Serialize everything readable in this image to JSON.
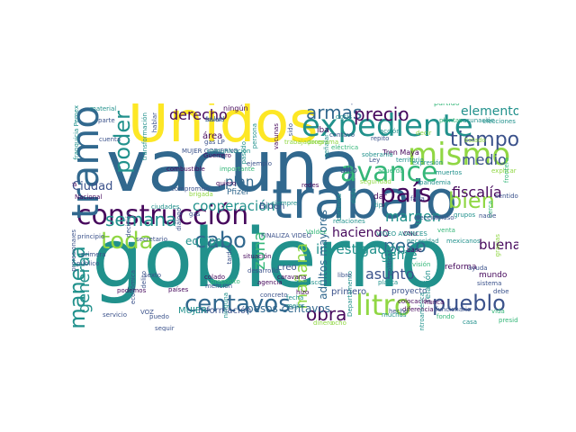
{
  "palette": {
    "dark_purple": "#46085c",
    "indigo": "#3b528b",
    "steel_blue": "#31688e",
    "teal": "#21918c",
    "sea_green": "#35b779",
    "lime": "#90d743",
    "yellow": "#fde725"
  },
  "words": [
    {
      "text": "gobierno",
      "color": "teal"
    },
    {
      "text": "vacuna",
      "color": "steel_blue"
    },
    {
      "text": "Unidos",
      "color": "yellow"
    },
    {
      "text": "construcción",
      "color": "dark_purple"
    },
    {
      "text": "trabajo",
      "color": "steel_blue"
    },
    {
      "text": "expediente",
      "color": "teal"
    },
    {
      "text": "tramo",
      "color": "steel_blue"
    },
    {
      "text": "país",
      "color": "dark_purple"
    },
    {
      "text": "mismo",
      "color": "lime"
    },
    {
      "text": "avance",
      "color": "sea_green"
    },
    {
      "text": "litro",
      "color": "lime"
    },
    {
      "text": "centavos",
      "color": "steel_blue"
    },
    {
      "text": "pueblo",
      "color": "indigo"
    },
    {
      "text": "tiempo",
      "color": "indigo"
    },
    {
      "text": "toda",
      "color": "lime"
    },
    {
      "text": "cabo",
      "color": "steel_blue"
    },
    {
      "text": "bien",
      "color": "lime"
    },
    {
      "text": "manera",
      "color": "teal"
    },
    {
      "text": "poder",
      "color": "teal"
    },
    {
      "text": "armas",
      "color": "steel_blue"
    },
    {
      "text": "precio",
      "color": "dark_purple"
    },
    {
      "text": "obra",
      "color": "dark_purple"
    },
    {
      "text": "peso",
      "color": "steel_blue"
    },
    {
      "text": "margen",
      "color": "teal"
    },
    {
      "text": "semana",
      "color": "teal"
    },
    {
      "text": "derecho",
      "color": "dark_purple"
    },
    {
      "text": "general",
      "color": "teal"
    },
    {
      "text": "elementos",
      "color": "teal"
    },
    {
      "text": "medio",
      "color": "indigo"
    },
    {
      "text": "fiscalía",
      "color": "dark_purple"
    },
    {
      "text": "cooperación",
      "color": "teal"
    },
    {
      "text": "plan",
      "color": "steel_blue"
    },
    {
      "text": "zona",
      "color": "sea_green"
    },
    {
      "text": "investigación",
      "color": "teal"
    },
    {
      "text": "asunto",
      "color": "indigo"
    },
    {
      "text": "haciendo",
      "color": "dark_purple"
    },
    {
      "text": "Ciudad",
      "color": "indigo"
    },
    {
      "text": "equipo",
      "color": "teal"
    },
    {
      "text": "buena",
      "color": "dark_purple"
    },
    {
      "text": "gente",
      "color": "teal"
    },
    {
      "text": "mañana",
      "color": "lime"
    },
    {
      "text": "adultos mayores",
      "color": "steel_blue"
    },
    {
      "text": "Biden",
      "color": "indigo"
    },
    {
      "text": "creo",
      "color": "indigo"
    },
    {
      "text": "pesos centavos",
      "color": "steel_blue"
    },
    {
      "text": "información",
      "color": "indigo"
    },
    {
      "text": "MUJER",
      "color": "teal"
    },
    {
      "text": "primero",
      "color": "indigo"
    },
    {
      "text": "proyecto",
      "color": "indigo"
    },
    {
      "text": "mundo",
      "color": "dark_purple"
    },
    {
      "text": "relación",
      "color": "teal"
    },
    {
      "text": "reforma",
      "color": "dark_purple"
    },
    {
      "text": "Pfizer",
      "color": "steel_blue"
    },
    {
      "text": "área",
      "color": "dark_purple"
    },
    {
      "text": "ningún",
      "color": "dark_purple"
    },
    {
      "text": "dosis",
      "color": "teal"
    },
    {
      "text": "paso",
      "color": "indigo"
    },
    {
      "text": "alto",
      "color": "indigo"
    },
    {
      "text": "dar",
      "color": "dark_purple"
    },
    {
      "text": "Tren Maya",
      "color": "dark_purple"
    },
    {
      "text": "vacunación",
      "color": "teal"
    },
    {
      "text": "partido",
      "color": "sea_green"
    },
    {
      "text": "salud",
      "color": "steel_blue"
    },
    {
      "text": "iba",
      "color": "dark_purple"
    },
    {
      "text": "Guerrero",
      "color": "dark_purple"
    },
    {
      "text": "ejemplo",
      "color": "indigo"
    },
    {
      "text": "combustible",
      "color": "dark_purple"
    },
    {
      "text": "importante",
      "color": "sea_green"
    },
    {
      "text": "siempre",
      "color": "teal"
    },
    {
      "text": "FINALIZA VIDEO",
      "color": "indigo"
    },
    {
      "text": "desarrollo",
      "color": "indigo"
    },
    {
      "text": "situación",
      "color": "dark_purple"
    },
    {
      "text": "agencia",
      "color": "dark_purple"
    },
    {
      "text": "concreto",
      "color": "indigo"
    },
    {
      "text": "hizo",
      "color": "dark_purple"
    },
    {
      "text": "colado",
      "color": "dark_purple"
    },
    {
      "text": "diferencia",
      "color": "dark_purple"
    },
    {
      "text": "colocación",
      "color": "dark_purple"
    },
    {
      "text": "nunca",
      "color": "dark_purple"
    },
    {
      "text": "funcionario",
      "color": "indigo"
    },
    {
      "text": "servicio",
      "color": "indigo"
    },
    {
      "text": "puedo",
      "color": "indigo"
    },
    {
      "text": "seguir",
      "color": "indigo"
    },
    {
      "text": "VOZ",
      "color": "indigo"
    },
    {
      "text": "ocho",
      "color": "lime"
    },
    {
      "text": "dinero",
      "color": "lime"
    },
    {
      "text": "podemos",
      "color": "dark_purple"
    },
    {
      "text": "países",
      "color": "dark_purple"
    },
    {
      "text": "Departamento",
      "color": "teal"
    },
    {
      "text": "sistema",
      "color": "indigo"
    },
    {
      "text": "ONU",
      "color": "dark_purple"
    },
    {
      "text": "VIDEO AVANCES",
      "color": "teal"
    },
    {
      "text": "elección",
      "color": "indigo"
    },
    {
      "text": "incluso",
      "color": "indigo"
    },
    {
      "text": "material",
      "color": "teal"
    },
    {
      "text": "parte",
      "color": "indigo"
    },
    {
      "text": "cuenta",
      "color": "indigo"
    },
    {
      "text": "cara",
      "color": "dark_purple"
    },
    {
      "text": "franquicia Pemex",
      "color": "teal"
    },
    {
      "text": "principio",
      "color": "indigo"
    },
    {
      "text": "secretario",
      "color": "indigo"
    },
    {
      "text": "caravana",
      "color": "dark_purple"
    },
    {
      "text": "fecha",
      "color": "teal"
    },
    {
      "text": "mejor",
      "color": "teal"
    },
    {
      "text": "Centroamérica",
      "color": "teal"
    },
    {
      "text": "expresión",
      "color": "teal"
    },
    {
      "text": "eléctrica",
      "color": "sea_green"
    },
    {
      "text": "centavo",
      "color": "indigo"
    },
    {
      "text": "Nacional",
      "color": "dark_purple"
    },
    {
      "text": "MUJER GOBIERNO",
      "color": "indigo"
    },
    {
      "text": "gas LP",
      "color": "indigo"
    },
    {
      "text": "favor",
      "color": "indigo"
    },
    {
      "text": "hablar",
      "color": "indigo"
    },
    {
      "text": "transformación",
      "color": "teal"
    },
    {
      "text": "comunicación",
      "color": "teal"
    },
    {
      "text": "quiero",
      "color": "dark_purple"
    },
    {
      "text": "redes",
      "color": "dark_purple"
    },
    {
      "text": "base",
      "color": "dark_purple"
    },
    {
      "text": "falta",
      "color": "indigo"
    },
    {
      "text": "tipo",
      "color": "teal"
    },
    {
      "text": "sexto",
      "color": "indigo"
    },
    {
      "text": "mención",
      "color": "indigo"
    },
    {
      "text": "soberanía",
      "color": "teal"
    },
    {
      "text": "política",
      "color": "indigo"
    },
    {
      "text": "público",
      "color": "indigo"
    },
    {
      "text": "delito",
      "color": "indigo"
    },
    {
      "text": "económica",
      "color": "indigo"
    },
    {
      "text": "decisión",
      "color": "indigo"
    },
    {
      "text": "profesionales",
      "color": "indigo"
    },
    {
      "text": "compromiso",
      "color": "indigo"
    },
    {
      "text": "ciudades",
      "color": "teal"
    },
    {
      "text": "diálogo",
      "color": "indigo"
    },
    {
      "text": "propósito",
      "color": "sea_green"
    },
    {
      "text": "tarde",
      "color": "indigo"
    },
    {
      "text": "ninguna",
      "color": "teal"
    },
    {
      "text": "brigada",
      "color": "lime"
    },
    {
      "text": "primera",
      "color": "indigo"
    },
    {
      "text": "gas",
      "color": "indigo"
    },
    {
      "text": "libre",
      "color": "indigo"
    },
    {
      "text": "vacunas",
      "color": "dark_purple"
    },
    {
      "text": "sido",
      "color": "indigo"
    },
    {
      "text": "Valdez",
      "color": "sea_green"
    },
    {
      "text": "persona",
      "color": "teal"
    },
    {
      "text": "pasado",
      "color": "teal"
    },
    {
      "text": "continúa",
      "color": "teal"
    },
    {
      "text": "grupos",
      "color": "teal"
    },
    {
      "text": "necesidad",
      "color": "teal"
    },
    {
      "text": "Ley",
      "color": "indigo"
    },
    {
      "text": "acuerdo",
      "color": "sea_green"
    },
    {
      "text": "trabajadores",
      "color": "lime"
    },
    {
      "text": "seguridad",
      "color": "lime"
    },
    {
      "text": "tabasco",
      "color": "teal"
    },
    {
      "text": "repito",
      "color": "indigo"
    },
    {
      "text": "relaciones",
      "color": "teal"
    },
    {
      "text": "muertos",
      "color": "teal"
    },
    {
      "text": "visión",
      "color": "sea_green"
    },
    {
      "text": "venta",
      "color": "sea_green"
    },
    {
      "text": "pandemia",
      "color": "teal"
    },
    {
      "text": "vida",
      "color": "sea_green"
    },
    {
      "text": "ayuda",
      "color": "indigo"
    },
    {
      "text": "explicar",
      "color": "lime"
    },
    {
      "text": "planta",
      "color": "teal"
    },
    {
      "text": "hecho",
      "color": "indigo"
    },
    {
      "text": "dado",
      "color": "teal"
    },
    {
      "text": "mexicanos",
      "color": "teal"
    },
    {
      "text": "señalar",
      "color": "teal"
    },
    {
      "text": "programa",
      "color": "lime"
    },
    {
      "text": "fondo",
      "color": "sea_green"
    },
    {
      "text": "casa",
      "color": "teal"
    },
    {
      "text": "muchas",
      "color": "teal"
    },
    {
      "text": "sentido",
      "color": "indigo"
    },
    {
      "text": "presidente",
      "color": "sea_green"
    },
    {
      "text": "debe",
      "color": "indigo"
    },
    {
      "text": "frontera",
      "color": "sea_green"
    },
    {
      "text": "gracias",
      "color": "lime"
    },
    {
      "text": "cerca",
      "color": "sea_green"
    },
    {
      "text": "nadie",
      "color": "indigo"
    },
    {
      "text": "Estado",
      "color": "lime"
    },
    {
      "text": "elecciones",
      "color": "teal"
    },
    {
      "text": "plantas",
      "color": "sea_green"
    },
    {
      "text": "decir",
      "color": "lime"
    },
    {
      "text": "territorio",
      "color": "teal"
    },
    {
      "text": "acción",
      "color": "teal"
    },
    {
      "text": "pobreza",
      "color": "sea_green"
    },
    {
      "text": "ingreso",
      "color": "sea_green"
    },
    {
      "text": "hoy",
      "color": "sea_green"
    },
    {
      "text": "días",
      "color": "sea_green"
    }
  ]
}
